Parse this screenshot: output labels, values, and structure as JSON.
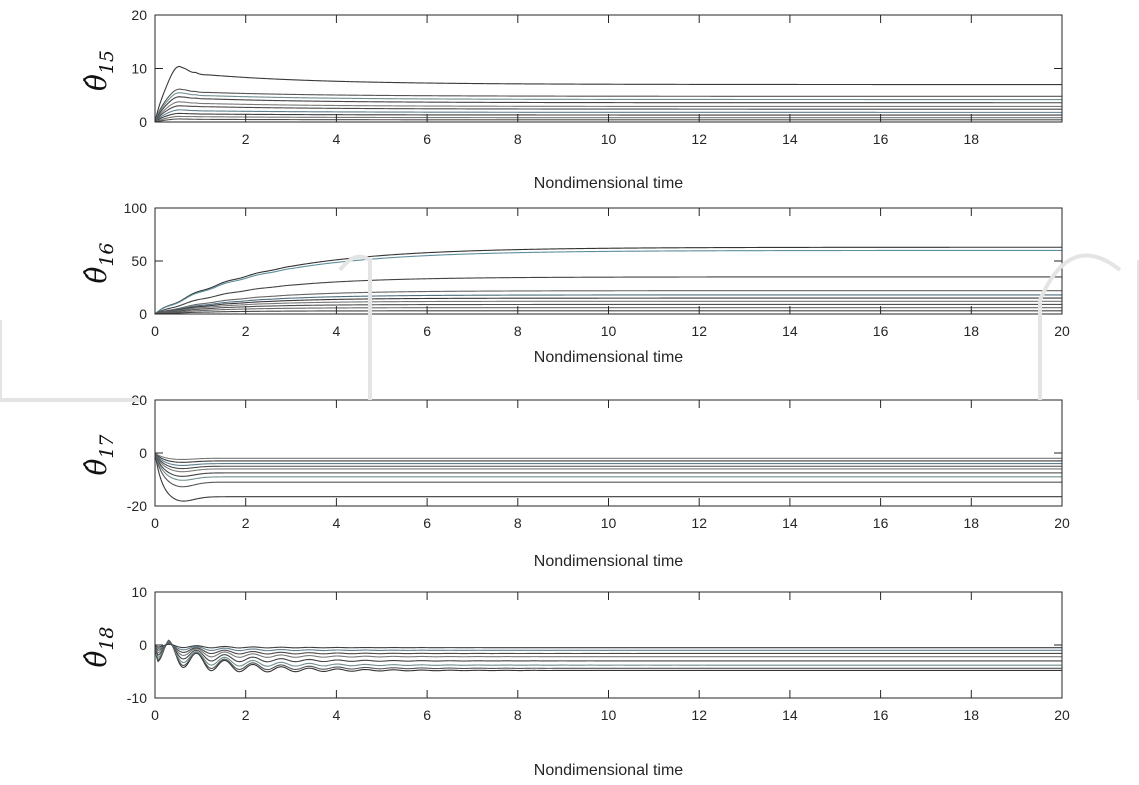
{
  "chart_data": [
    {
      "type": "line",
      "ylabel": {
        "symbol": "θ̂",
        "subscript": "15"
      },
      "xlabel": "Nondimensional time",
      "xlim": [
        0,
        20
      ],
      "ylim": [
        0,
        20
      ],
      "xticks": [
        2,
        4,
        6,
        8,
        10,
        12,
        14,
        16,
        18
      ],
      "yticks": [
        0,
        10,
        20
      ],
      "grid": false,
      "series": [
        {
          "final": 7.0,
          "peak": 11.0,
          "bump": 9.0,
          "color": "#3a3a3a"
        },
        {
          "final": 4.8,
          "peak": 6.5,
          "bump": 5.6,
          "color": "#555555"
        },
        {
          "final": 4.2,
          "peak": 5.8,
          "bump": 5.0,
          "color": "#6f8f8f"
        },
        {
          "final": 3.6,
          "peak": 5.0,
          "bump": 4.4,
          "color": "#444444"
        },
        {
          "final": 2.9,
          "peak": 4.0,
          "bump": 3.5,
          "color": "#7a7a7a"
        },
        {
          "final": 2.4,
          "peak": 3.2,
          "bump": 2.9,
          "color": "#4a4a4a"
        },
        {
          "final": 1.8,
          "peak": 2.4,
          "bump": 2.1,
          "color": "#5f7f8f"
        },
        {
          "final": 1.3,
          "peak": 1.7,
          "bump": 1.5,
          "color": "#3f3f3f"
        },
        {
          "final": 0.8,
          "peak": 1.1,
          "bump": 1.0,
          "color": "#777777"
        },
        {
          "final": 0.4,
          "peak": 0.6,
          "bump": 0.5,
          "color": "#505050"
        }
      ]
    },
    {
      "type": "line",
      "ylabel": {
        "symbol": "θ̂",
        "subscript": "16"
      },
      "xlabel": "Nondimensional time",
      "xlim": [
        0,
        20
      ],
      "ylim": [
        0,
        100
      ],
      "xticks": [
        0,
        2,
        4,
        6,
        8,
        10,
        12,
        14,
        16,
        18,
        20
      ],
      "yticks": [
        0,
        50,
        100
      ],
      "grid": false,
      "series": [
        {
          "final": 63,
          "tau": 2.4,
          "color": "#333333"
        },
        {
          "final": 60,
          "tau": 2.4,
          "color": "#5f8f9f"
        },
        {
          "final": 35,
          "tau": 2.0,
          "color": "#444444"
        },
        {
          "final": 22,
          "tau": 1.8,
          "color": "#666666"
        },
        {
          "final": 18,
          "tau": 1.7,
          "color": "#4f6f7f"
        },
        {
          "final": 15,
          "tau": 1.6,
          "color": "#3a3a3a"
        },
        {
          "final": 12,
          "tau": 1.5,
          "color": "#777777"
        },
        {
          "final": 9,
          "tau": 1.4,
          "color": "#505050"
        },
        {
          "final": 6,
          "tau": 1.3,
          "color": "#6a6a6a"
        },
        {
          "final": 3,
          "tau": 1.2,
          "color": "#454545"
        }
      ]
    },
    {
      "type": "line",
      "ylabel": {
        "symbol": "θ̂",
        "subscript": "17"
      },
      "xlabel": "Nondimensional time",
      "xlim": [
        0,
        20
      ],
      "ylim": [
        -20,
        20
      ],
      "xticks": [
        0,
        2,
        4,
        6,
        8,
        10,
        12,
        14,
        16,
        18,
        20
      ],
      "yticks": [
        -20,
        0,
        20
      ],
      "grid": false,
      "series": [
        {
          "final": -16.5,
          "peak": -18.5,
          "color": "#3a3a3a"
        },
        {
          "final": -11.0,
          "peak": -13.0,
          "color": "#555555"
        },
        {
          "final": -9.0,
          "peak": -10.5,
          "color": "#6f8f8f"
        },
        {
          "final": -7.5,
          "peak": -9.0,
          "color": "#444444"
        },
        {
          "final": -6.0,
          "peak": -7.2,
          "color": "#7a7a7a"
        },
        {
          "final": -5.0,
          "peak": -6.0,
          "color": "#4a4a4a"
        },
        {
          "final": -4.0,
          "peak": -4.8,
          "color": "#5f7f8f"
        },
        {
          "final": -3.0,
          "peak": -3.6,
          "color": "#3f3f3f"
        },
        {
          "final": -2.0,
          "peak": -2.5,
          "color": "#777777"
        }
      ]
    },
    {
      "type": "line",
      "ylabel": {
        "symbol": "θ̂",
        "subscript": "18"
      },
      "xlabel": "Nondimensional time",
      "xlim": [
        0,
        20
      ],
      "ylim": [
        -10,
        10
      ],
      "xticks": [
        0,
        2,
        4,
        6,
        8,
        10,
        12,
        14,
        16,
        18,
        20
      ],
      "yticks": [
        -10,
        0,
        10
      ],
      "grid": false,
      "series": [
        {
          "final": -4.8,
          "amp": 5.5,
          "color": "#333333"
        },
        {
          "final": -4.4,
          "amp": 5.0,
          "color": "#555555"
        },
        {
          "final": -3.8,
          "amp": 4.2,
          "color": "#6f8f8f"
        },
        {
          "final": -3.0,
          "amp": 3.4,
          "color": "#444444"
        },
        {
          "final": -2.2,
          "amp": 2.6,
          "color": "#777777"
        },
        {
          "final": -1.6,
          "amp": 1.8,
          "color": "#4a4a4a"
        },
        {
          "final": -1.0,
          "amp": 1.2,
          "color": "#5f7f8f"
        },
        {
          "final": -0.5,
          "amp": 0.7,
          "color": "#3f3f3f"
        }
      ]
    }
  ]
}
